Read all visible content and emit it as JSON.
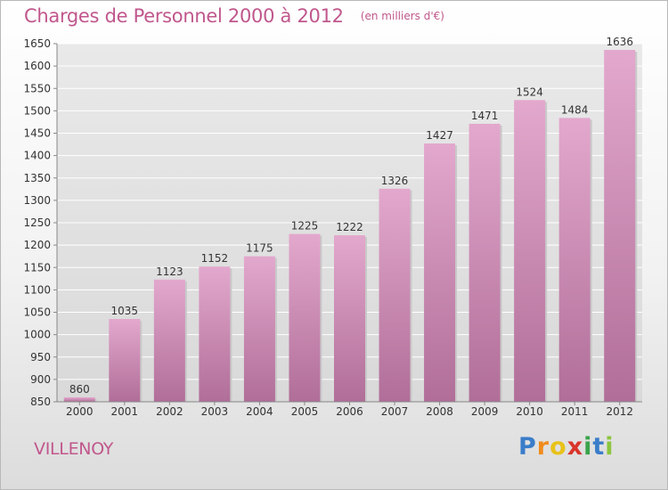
{
  "header": {
    "title": "Charges de Personnel 2000 à 2012",
    "subtitle": "(en milliers d'€)"
  },
  "place": "VILLENOY",
  "logo": {
    "text": "Proxiti",
    "letters": [
      {
        "ch": "P",
        "color": "#3a7dc9"
      },
      {
        "ch": "r",
        "color": "#f08c1c"
      },
      {
        "ch": "o",
        "color": "#e8c21a"
      },
      {
        "ch": "x",
        "color": "#d9352b"
      },
      {
        "ch": "i",
        "color": "#3aa34a"
      },
      {
        "ch": "t",
        "color": "#3a7dc9"
      },
      {
        "ch": "i",
        "color": "#8cc63f"
      }
    ]
  },
  "chart_data": {
    "type": "bar",
    "title": "Charges de Personnel 2000 à 2012",
    "subtitle": "(en milliers d'€)",
    "categories": [
      "2000",
      "2001",
      "2002",
      "2003",
      "2004",
      "2005",
      "2006",
      "2007",
      "2008",
      "2009",
      "2010",
      "2011",
      "2012"
    ],
    "values": [
      860,
      1035,
      1123,
      1152,
      1175,
      1225,
      1222,
      1326,
      1427,
      1471,
      1524,
      1484,
      1636
    ],
    "ylim": [
      850,
      1650
    ],
    "yticks": [
      850,
      900,
      950,
      1000,
      1050,
      1100,
      1150,
      1200,
      1250,
      1300,
      1350,
      1400,
      1450,
      1500,
      1550,
      1600,
      1650
    ],
    "grid": true,
    "bar_color_top": "#e3a8cd",
    "bar_color_bottom": "#b06e98",
    "title_color": "#c0578c"
  }
}
